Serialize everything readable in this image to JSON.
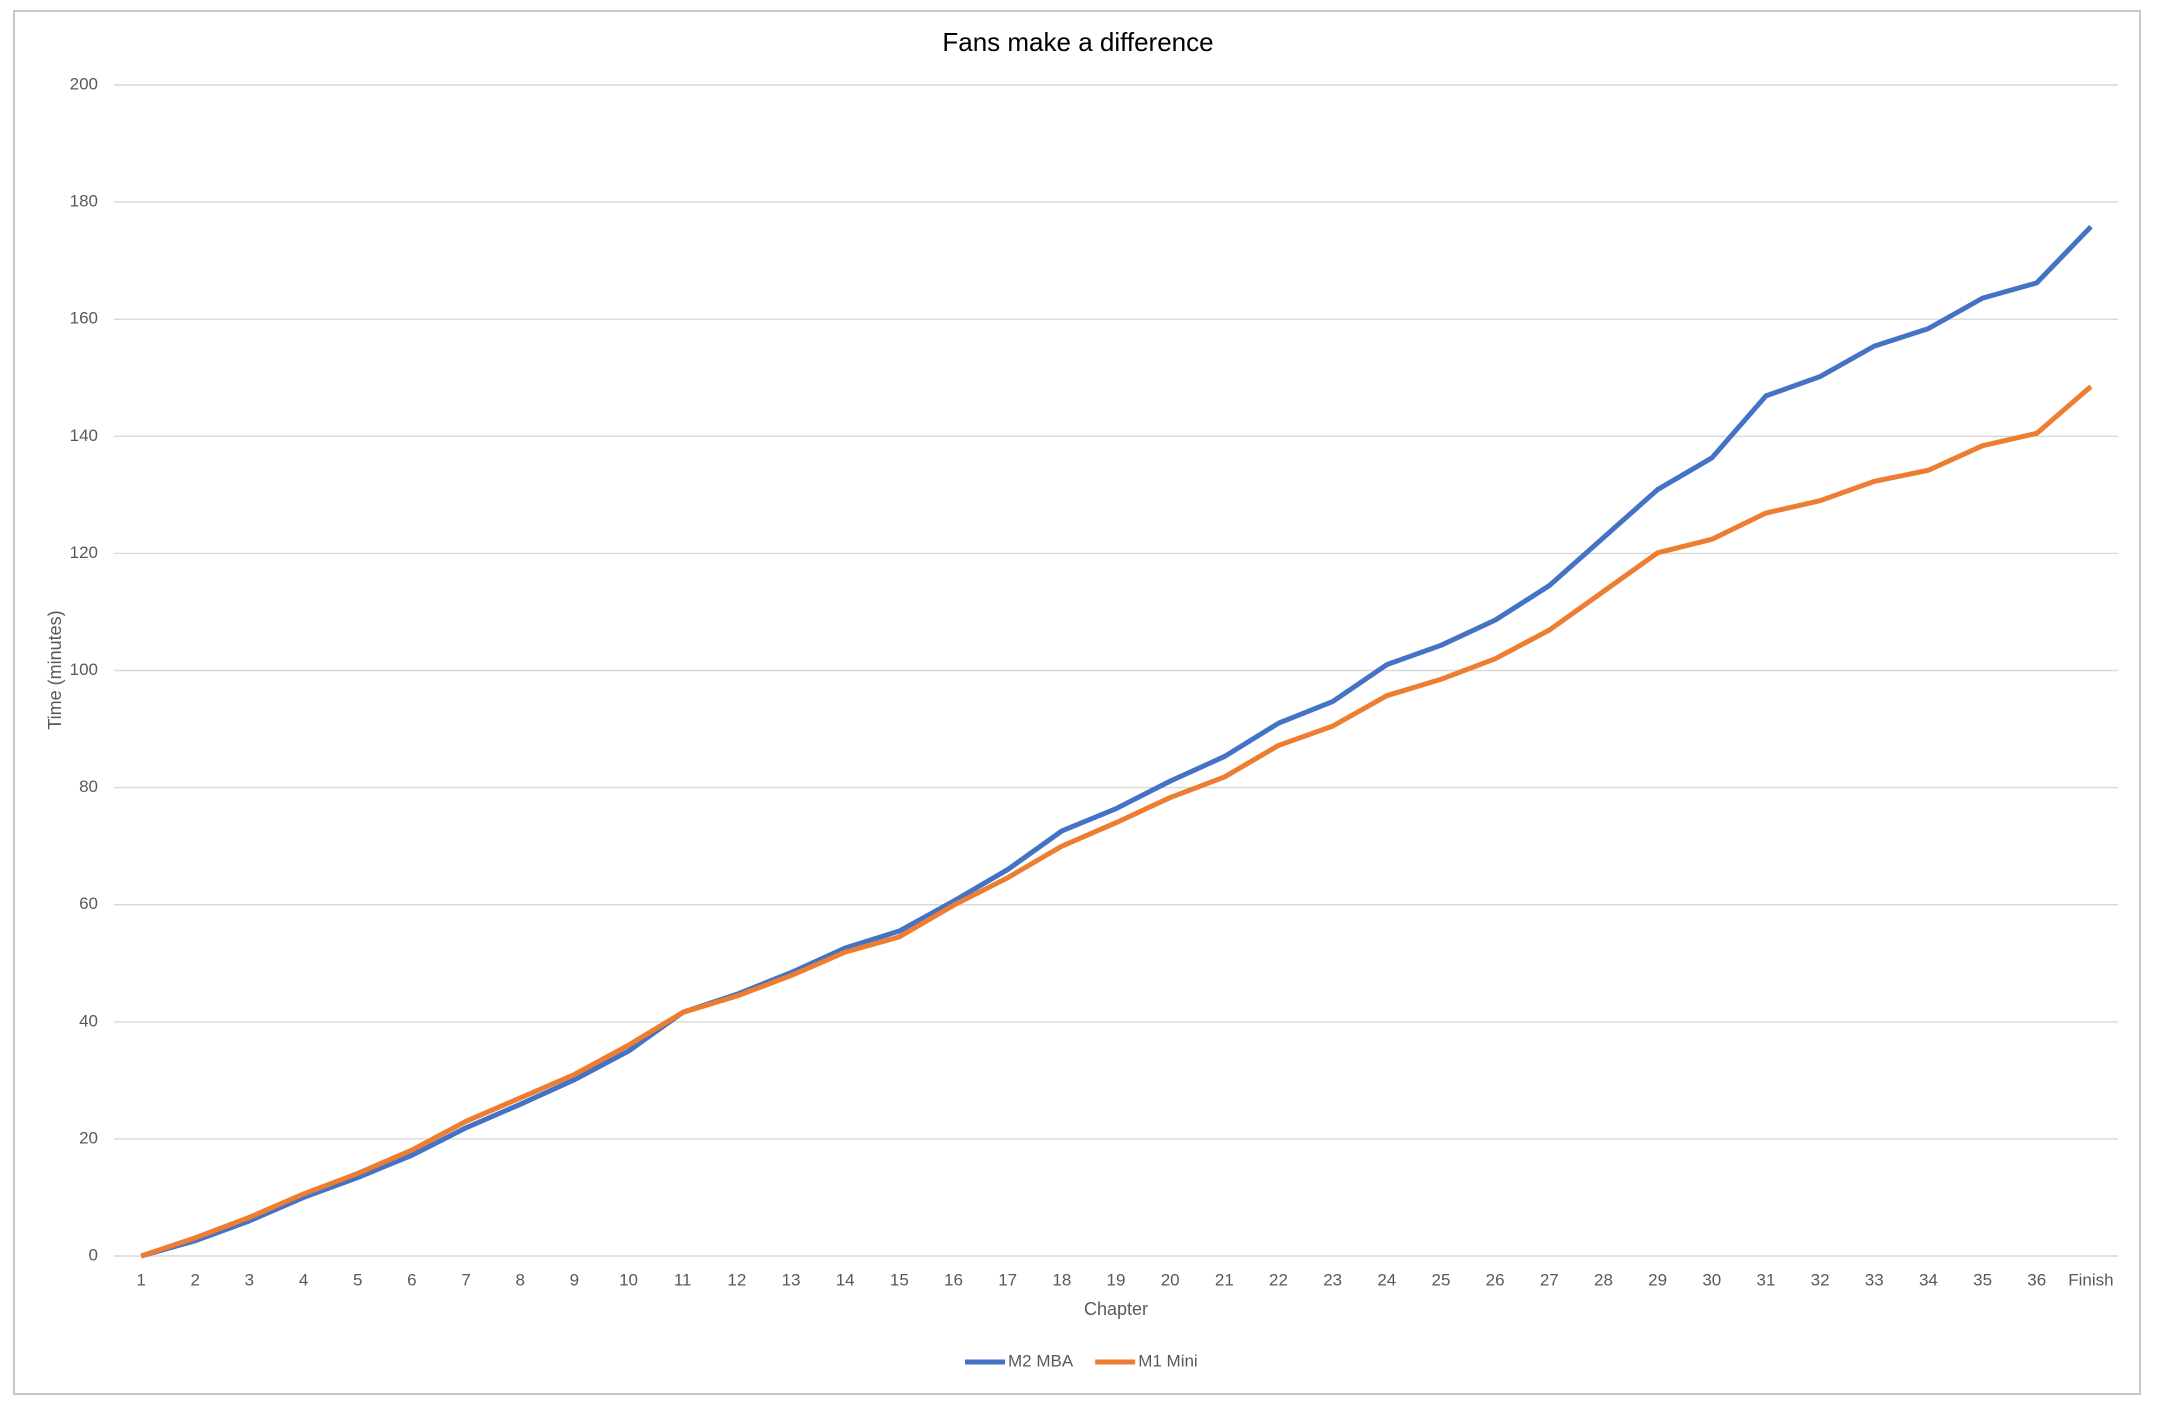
{
  "chart_data": {
    "type": "line",
    "title": "Fans make a difference",
    "x_label": "Chapter",
    "y_label": "Time (minutes)",
    "categories": [
      "1",
      "2",
      "3",
      "4",
      "5",
      "6",
      "7",
      "8",
      "9",
      "10",
      "11",
      "12",
      "13",
      "14",
      "15",
      "16",
      "17",
      "18",
      "19",
      "20",
      "21",
      "22",
      "23",
      "24",
      "25",
      "26",
      "27",
      "28",
      "29",
      "30",
      "31",
      "32",
      "33",
      "34",
      "35",
      "36",
      "Finish"
    ],
    "series": [
      {
        "name": "M2 MBA",
        "color": "#4472c4",
        "values": [
          0,
          2.6,
          6,
          10,
          13.4,
          17.2,
          21.9,
          25.9,
          30.1,
          35,
          41.6,
          44.7,
          48.4,
          52.6,
          55.5,
          60.6,
          66,
          72.6,
          76.4,
          81.1,
          85.3,
          91,
          94.7,
          101,
          104.3,
          108.6,
          114.5,
          122.7,
          130.9,
          136.3,
          146.9,
          150.2,
          155.4,
          158.4,
          163.6,
          166.2,
          175.8
        ]
      },
      {
        "name": "M1 Mini",
        "color": "#ed7d31",
        "values": [
          0,
          3.1,
          6.6,
          10.6,
          14.1,
          18.1,
          23,
          27,
          31,
          36,
          41.6,
          44.4,
          47.9,
          51.9,
          54.5,
          59.9,
          64.6,
          70,
          74,
          78.3,
          81.8,
          87.2,
          90.5,
          95.7,
          98.5,
          102,
          106.9,
          113.5,
          120.1,
          122.4,
          126.9,
          129,
          132.3,
          134.2,
          138.4,
          140.5,
          148.5
        ]
      }
    ],
    "ylim": [
      0,
      200
    ],
    "yticks": [
      0,
      20,
      40,
      60,
      80,
      100,
      120,
      140,
      160,
      180,
      200
    ],
    "grid": true,
    "legend": "bottom"
  }
}
